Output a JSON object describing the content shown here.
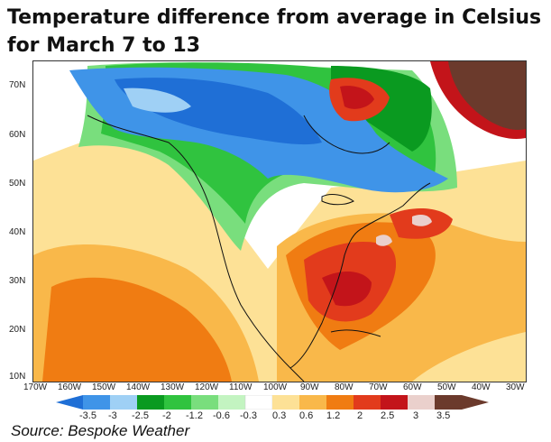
{
  "title_line1": "Temperature difference from average in Celsius",
  "title_line2": "for March 7 to 13",
  "source": "Source: Bespoke Weather",
  "lat_labels": [
    "70N",
    "60N",
    "50N",
    "40N",
    "30N",
    "20N",
    "10N"
  ],
  "lon_labels": [
    "170W",
    "160W",
    "150W",
    "140W",
    "130W",
    "120W",
    "110W",
    "100W",
    "90W",
    "80W",
    "70W",
    "60W",
    "50W",
    "40W",
    "30W"
  ],
  "colorbar": {
    "labels": [
      "-3.5",
      "-3",
      "-2.5",
      "-2",
      "-1.2",
      "-0.6",
      "-0.3",
      "0.3",
      "0.6",
      "1.2",
      "2",
      "2.5",
      "3",
      "3.5"
    ],
    "colors": [
      "#1f6fd6",
      "#3f94e8",
      "#9fd0f5",
      "#0a9a20",
      "#30c33f",
      "#79de7d",
      "#c3f4c1",
      "#ffffff",
      "#fde196",
      "#f9b84a",
      "#f07c12",
      "#e23b1c",
      "#c3141a",
      "#ead0cc",
      "#6b3a2c"
    ]
  }
}
